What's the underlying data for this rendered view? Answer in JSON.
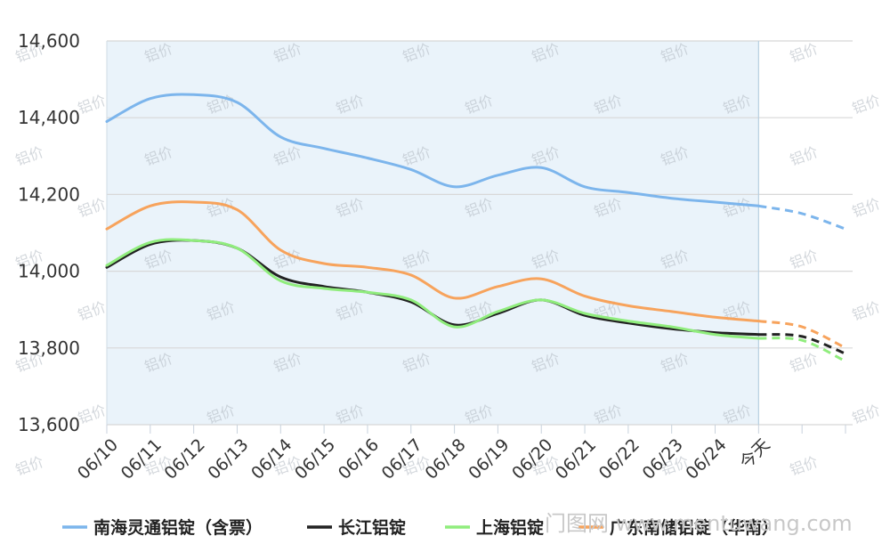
{
  "chart_data": {
    "type": "line",
    "categories": [
      "06/10",
      "06/11",
      "06/12",
      "06/13",
      "06/14",
      "06/15",
      "06/16",
      "06/17",
      "06/18",
      "06/19",
      "06/20",
      "06/21",
      "06/22",
      "06/23",
      "06/24",
      "今天",
      "",
      ""
    ],
    "today_label": "今天",
    "ylim": [
      13600,
      14600
    ],
    "yticks": [
      13600,
      13800,
      14000,
      14200,
      14400,
      14600
    ],
    "ytick_labels": [
      "13,600",
      "13,800",
      "14,000",
      "14,200",
      "14,400",
      "14,600"
    ],
    "grid": true,
    "legend_position": "bottom",
    "series": [
      {
        "name": "南海灵通铝锭（含票）",
        "color": "#7cb5ec",
        "values": [
          14390,
          14450,
          14460,
          14440,
          14350,
          14320,
          14295,
          14265,
          14220,
          14250,
          14270,
          14220,
          14205,
          14190,
          14180,
          14170,
          14150,
          14110
        ]
      },
      {
        "name": "长江铝锭",
        "color": "#222222",
        "values": [
          14010,
          14070,
          14080,
          14060,
          13985,
          13960,
          13945,
          13920,
          13860,
          13890,
          13925,
          13885,
          13865,
          13850,
          13840,
          13835,
          13830,
          13785
        ]
      },
      {
        "name": "上海铝锭",
        "color": "#90ed7d",
        "values": [
          14015,
          14075,
          14080,
          14060,
          13975,
          13955,
          13945,
          13925,
          13855,
          13895,
          13925,
          13890,
          13870,
          13855,
          13835,
          13825,
          13820,
          13765
        ]
      },
      {
        "name": "广东南储铝锭（华南）",
        "color": "#f7a35c",
        "values": [
          14110,
          14170,
          14180,
          14160,
          14055,
          14020,
          14010,
          13990,
          13930,
          13960,
          13980,
          13935,
          13910,
          13895,
          13880,
          13870,
          13855,
          13800
        ]
      }
    ]
  },
  "watermark": {
    "text": "铝价"
  },
  "site_watermark": "门图网 www.mentuwang.com"
}
